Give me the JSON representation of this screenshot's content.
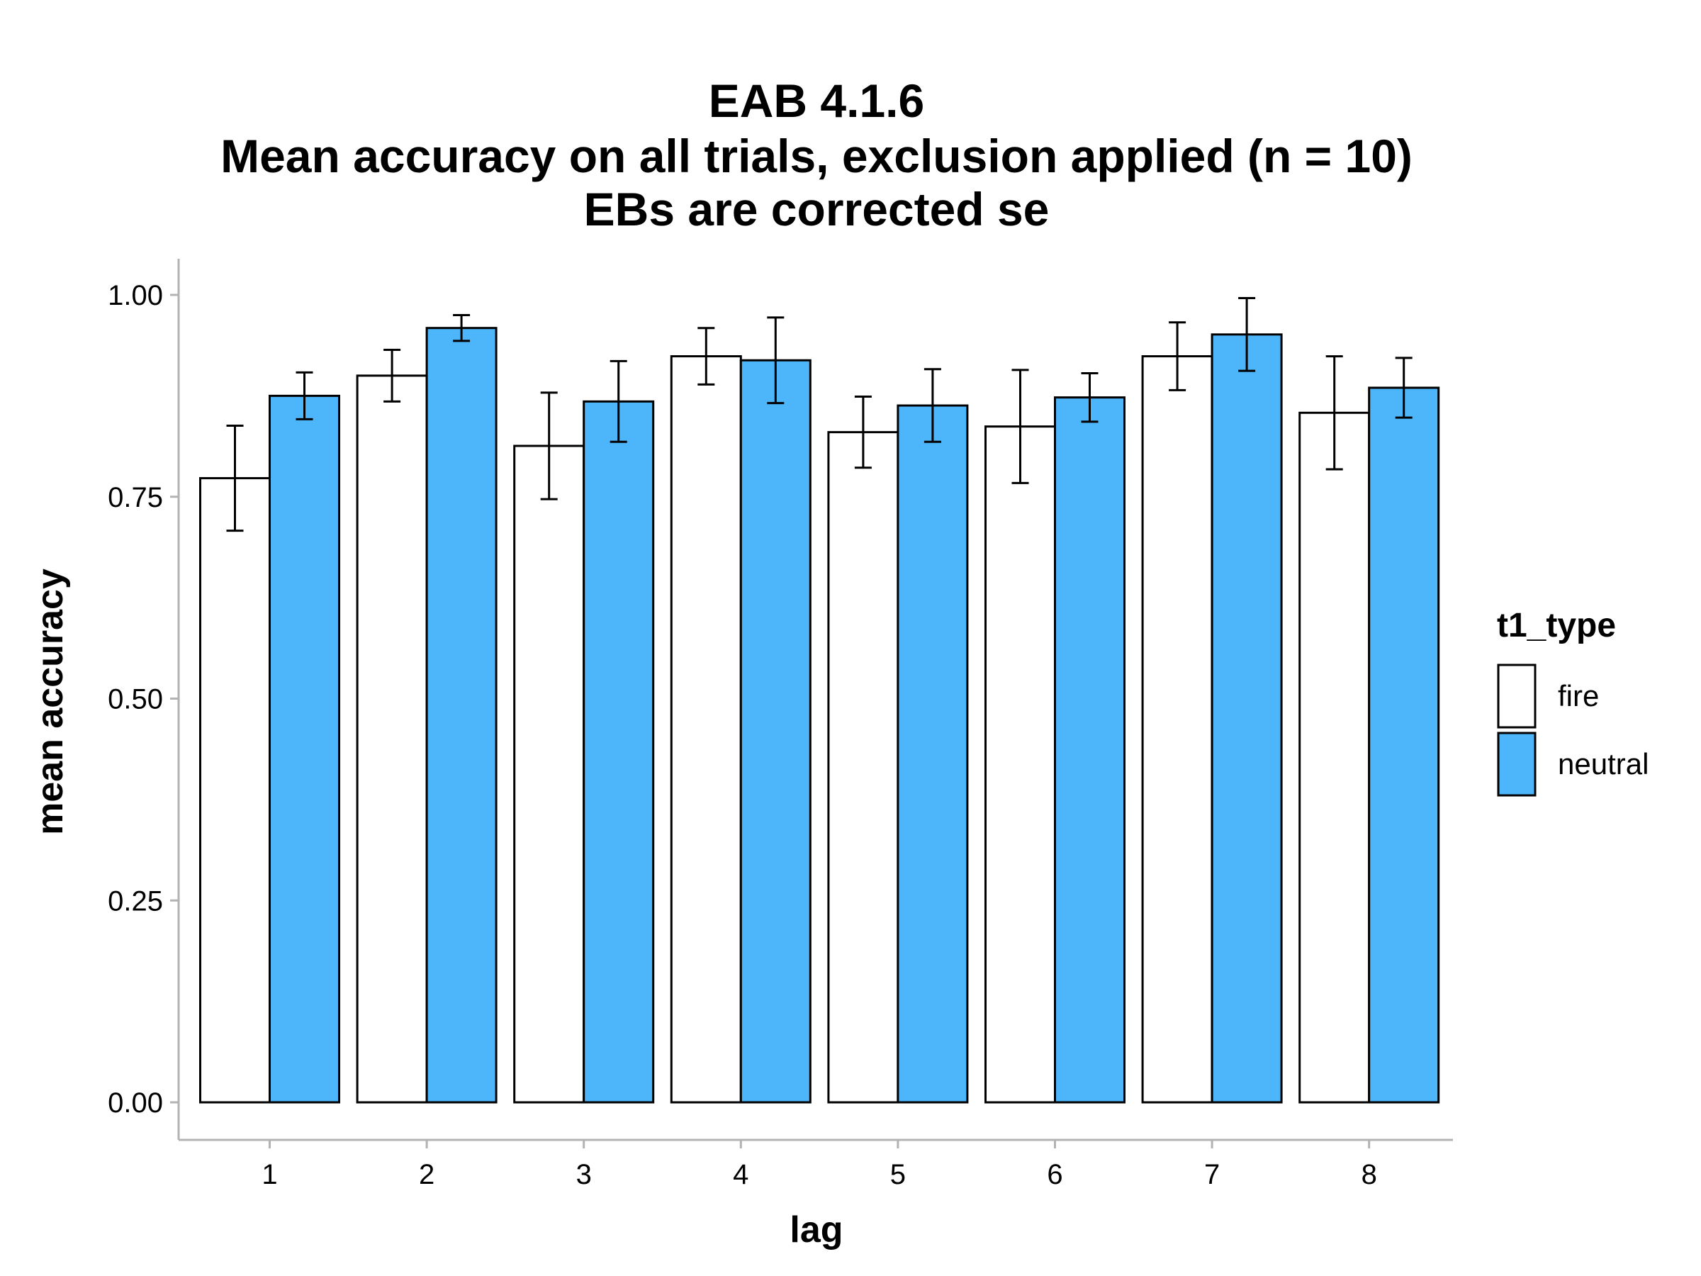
{
  "chart_data": {
    "type": "bar",
    "title_lines": [
      "EAB 4.1.6",
      "Mean accuracy on all trials, exclusion applied (n = 10)",
      "EBs are corrected se"
    ],
    "xlabel": "lag",
    "ylabel": "mean accuracy",
    "categories": [
      "1",
      "2",
      "3",
      "4",
      "5",
      "6",
      "7",
      "8"
    ],
    "ylim": [
      0,
      1.03
    ],
    "yticks": [
      0,
      0.25,
      0.5,
      0.75,
      1.0
    ],
    "ytick_labels": [
      "0.00",
      "0.25",
      "0.50",
      "0.75",
      "1.00"
    ],
    "legend_title": "t1_type",
    "legend_position": "right",
    "grid": false,
    "series": [
      {
        "name": "fire",
        "color": "#ffffff",
        "values": [
          0.773,
          0.9,
          0.813,
          0.924,
          0.83,
          0.837,
          0.924,
          0.854
        ],
        "err_low": [
          0.708,
          0.868,
          0.747,
          0.889,
          0.786,
          0.767,
          0.882,
          0.784
        ],
        "err_high": [
          0.838,
          0.932,
          0.879,
          0.959,
          0.874,
          0.907,
          0.966,
          0.924
        ]
      },
      {
        "name": "neutral",
        "color": "#4db6fa",
        "values": [
          0.875,
          0.959,
          0.868,
          0.919,
          0.863,
          0.873,
          0.951,
          0.885
        ],
        "err_low": [
          0.846,
          0.943,
          0.818,
          0.866,
          0.818,
          0.843,
          0.906,
          0.848
        ],
        "err_high": [
          0.904,
          0.975,
          0.918,
          0.972,
          0.908,
          0.903,
          0.996,
          0.922
        ]
      }
    ]
  }
}
